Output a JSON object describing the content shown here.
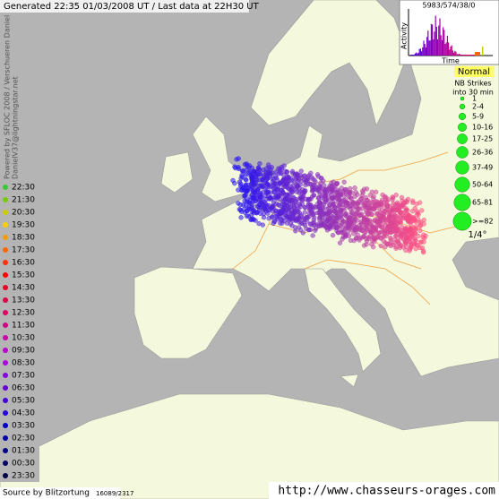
{
  "header": {
    "title": "Generated 22:35 01/03/2008 UT / Last data at 22H30 UT"
  },
  "credits": {
    "line1": "Powered by SFLOC 2008 / Verschueren Daniel",
    "line2": "DanielV37@lightningstar.net"
  },
  "histogram": {
    "counts": "5983/574/38/0",
    "y_label": "Activity",
    "x_label": "Time"
  },
  "status": "Normal",
  "size_legend": {
    "title1": "NB Strikes",
    "title2": "into 30 min",
    "items": [
      "1",
      "2-4",
      "5-9",
      "10-16",
      "17-25",
      "26-36",
      "37-49",
      "50-64",
      "65-81",
      ">=82"
    ],
    "resolution": "1/4°"
  },
  "time_legend": [
    {
      "label": "22:30",
      "color": "#33cc33"
    },
    {
      "label": "21:30",
      "color": "#77cc00"
    },
    {
      "label": "20:30",
      "color": "#cccc00"
    },
    {
      "label": "19:30",
      "color": "#ffcc00"
    },
    {
      "label": "18:30",
      "color": "#ff9900"
    },
    {
      "label": "17:30",
      "color": "#ff6600"
    },
    {
      "label": "16:30",
      "color": "#ff3300"
    },
    {
      "label": "15:30",
      "color": "#ff0000"
    },
    {
      "label": "14:30",
      "color": "#ee0022"
    },
    {
      "label": "13:30",
      "color": "#dd0044"
    },
    {
      "label": "12:30",
      "color": "#dd0066"
    },
    {
      "label": "11:30",
      "color": "#cc0088"
    },
    {
      "label": "10:30",
      "color": "#cc00aa"
    },
    {
      "label": "09:30",
      "color": "#bb00cc"
    },
    {
      "label": "08:30",
      "color": "#aa00dd"
    },
    {
      "label": "07:30",
      "color": "#8800dd"
    },
    {
      "label": "06:30",
      "color": "#6600dd"
    },
    {
      "label": "05:30",
      "color": "#4400dd"
    },
    {
      "label": "04:30",
      "color": "#2200dd"
    },
    {
      "label": "03:30",
      "color": "#0000cc"
    },
    {
      "label": "02:30",
      "color": "#0000aa"
    },
    {
      "label": "01:30",
      "color": "#000088"
    },
    {
      "label": "00:30",
      "color": "#000066"
    },
    {
      "label": "23:30",
      "color": "#000044"
    }
  ],
  "footer": {
    "source": "Source by Blitzortung",
    "source_counts": "16089/2317",
    "url": "http://www.chasseurs-orages.com"
  }
}
